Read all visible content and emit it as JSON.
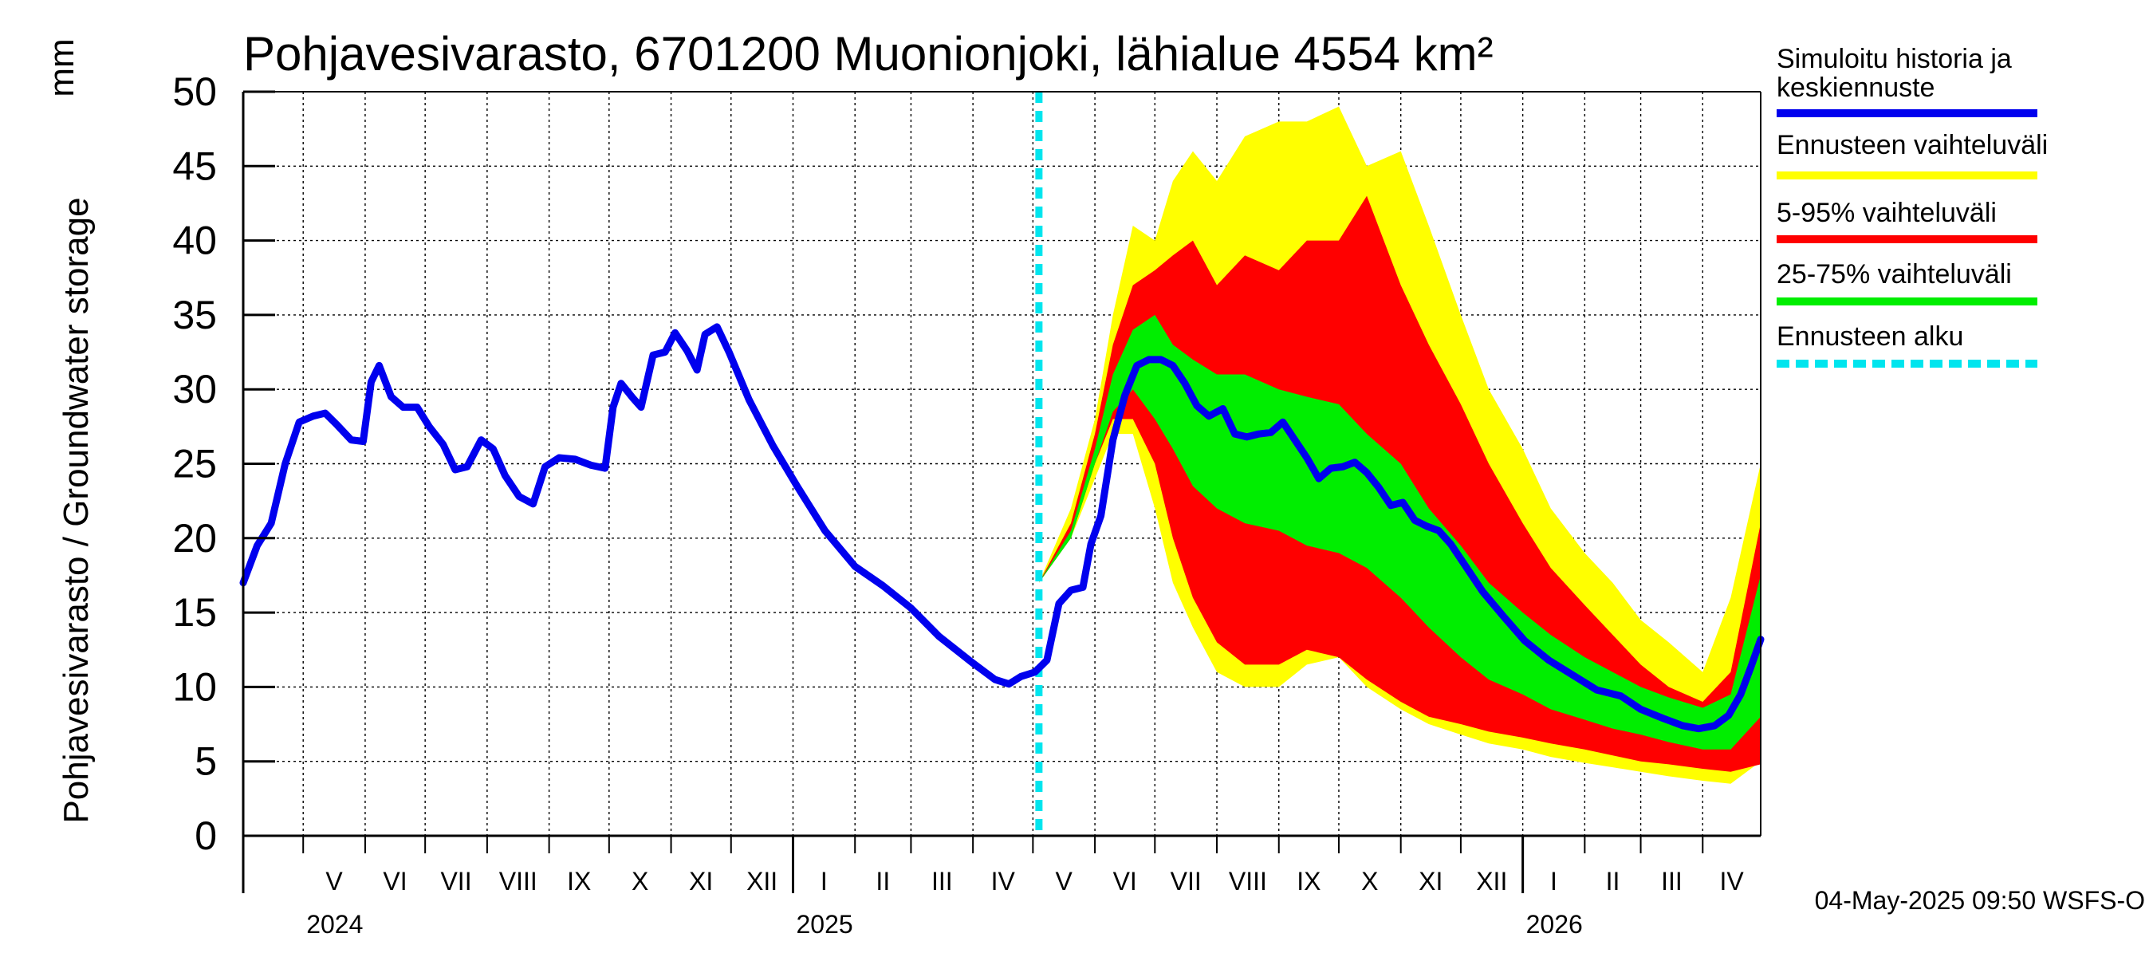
{
  "chart_data": {
    "type": "area",
    "title": "Pohjavesivarasto, 6701200 Muonionjoki, lähialue 4554 km²",
    "ylabel": "Pohjavesivarasto / Groundwater storage",
    "yunit": "mm",
    "ylim": [
      0,
      50
    ],
    "yticks": [
      0,
      5,
      10,
      15,
      20,
      25,
      30,
      35,
      40,
      45,
      50
    ],
    "xlim": [
      "2024-04-01",
      "2026-04-30"
    ],
    "grid": true,
    "legend_position": "right",
    "forecast_start": "2025-05-04",
    "months": [
      {
        "label": "V",
        "start": "2024-05-01"
      },
      {
        "label": "VI",
        "start": "2024-06-01"
      },
      {
        "label": "VII",
        "start": "2024-07-01"
      },
      {
        "label": "VIII",
        "start": "2024-08-01"
      },
      {
        "label": "IX",
        "start": "2024-09-01"
      },
      {
        "label": "X",
        "start": "2024-10-01"
      },
      {
        "label": "XI",
        "start": "2024-11-01"
      },
      {
        "label": "XII",
        "start": "2024-12-01"
      },
      {
        "label": "I",
        "start": "2025-01-01"
      },
      {
        "label": "II",
        "start": "2025-02-01"
      },
      {
        "label": "III",
        "start": "2025-03-01"
      },
      {
        "label": "IV",
        "start": "2025-04-01"
      },
      {
        "label": "V",
        "start": "2025-05-01"
      },
      {
        "label": "VI",
        "start": "2025-06-01"
      },
      {
        "label": "VII",
        "start": "2025-07-01"
      },
      {
        "label": "VIII",
        "start": "2025-08-01"
      },
      {
        "label": "IX",
        "start": "2025-09-01"
      },
      {
        "label": "X",
        "start": "2025-10-01"
      },
      {
        "label": "XI",
        "start": "2025-11-01"
      },
      {
        "label": "XII",
        "start": "2025-12-01"
      },
      {
        "label": "I",
        "start": "2026-01-01"
      },
      {
        "label": "II",
        "start": "2026-02-01"
      },
      {
        "label": "III",
        "start": "2026-03-01"
      },
      {
        "label": "IV",
        "start": "2026-04-01"
      }
    ],
    "years": [
      {
        "label": "2024",
        "start": "2024-05-01"
      },
      {
        "label": "2025",
        "start": "2025-01-01"
      },
      {
        "label": "2026",
        "start": "2026-01-01"
      }
    ],
    "series": [
      {
        "name": "Simuloitu historia ja keskiennuste",
        "kind": "line",
        "color": "#0000ee",
        "points": [
          [
            "2024-04-01",
            17
          ],
          [
            "2024-04-08",
            19.5
          ],
          [
            "2024-04-15",
            21
          ],
          [
            "2024-04-22",
            25
          ],
          [
            "2024-04-29",
            27.8
          ],
          [
            "2024-05-06",
            28.2
          ],
          [
            "2024-05-12",
            28.4
          ],
          [
            "2024-05-18",
            27.6
          ],
          [
            "2024-05-25",
            26.6
          ],
          [
            "2024-05-31",
            26.5
          ],
          [
            "2024-06-04",
            30.5
          ],
          [
            "2024-06-08",
            31.6
          ],
          [
            "2024-06-14",
            29.5
          ],
          [
            "2024-06-20",
            28.8
          ],
          [
            "2024-06-27",
            28.8
          ],
          [
            "2024-07-03",
            27.5
          ],
          [
            "2024-07-10",
            26.3
          ],
          [
            "2024-07-16",
            24.6
          ],
          [
            "2024-07-22",
            24.8
          ],
          [
            "2024-07-29",
            26.6
          ],
          [
            "2024-08-04",
            26
          ],
          [
            "2024-08-10",
            24.2
          ],
          [
            "2024-08-17",
            22.8
          ],
          [
            "2024-08-24",
            22.3
          ],
          [
            "2024-08-30",
            24.8
          ],
          [
            "2024-09-06",
            25.4
          ],
          [
            "2024-09-14",
            25.3
          ],
          [
            "2024-09-22",
            24.9
          ],
          [
            "2024-09-29",
            24.7
          ],
          [
            "2024-10-03",
            28.8
          ],
          [
            "2024-10-07",
            30.4
          ],
          [
            "2024-10-13",
            29.4
          ],
          [
            "2024-10-17",
            28.8
          ],
          [
            "2024-10-23",
            32.3
          ],
          [
            "2024-10-29",
            32.5
          ],
          [
            "2024-11-03",
            33.8
          ],
          [
            "2024-11-09",
            32.6
          ],
          [
            "2024-11-14",
            31.3
          ],
          [
            "2024-11-18",
            33.7
          ],
          [
            "2024-11-24",
            34.2
          ],
          [
            "2024-11-30",
            32.5
          ],
          [
            "2024-12-10",
            29.3
          ],
          [
            "2024-12-22",
            26.2
          ],
          [
            "2025-01-03",
            23.5
          ],
          [
            "2025-01-17",
            20.5
          ],
          [
            "2025-02-01",
            18.1
          ],
          [
            "2025-02-15",
            16.8
          ],
          [
            "2025-03-01",
            15.3
          ],
          [
            "2025-03-15",
            13.4
          ],
          [
            "2025-04-01",
            11.6
          ],
          [
            "2025-04-12",
            10.5
          ],
          [
            "2025-04-19",
            10.2
          ],
          [
            "2025-04-25",
            10.7
          ],
          [
            "2025-05-02",
            11
          ],
          [
            "2025-05-08",
            11.8
          ],
          [
            "2025-05-14",
            15.6
          ],
          [
            "2025-05-20",
            16.5
          ],
          [
            "2025-05-26",
            16.7
          ],
          [
            "2025-05-30",
            19.6
          ],
          [
            "2025-06-04",
            21.5
          ],
          [
            "2025-06-10",
            26.6
          ],
          [
            "2025-06-16",
            29.6
          ],
          [
            "2025-06-22",
            31.6
          ],
          [
            "2025-06-28",
            32
          ],
          [
            "2025-07-04",
            32
          ],
          [
            "2025-07-10",
            31.6
          ],
          [
            "2025-07-16",
            30.4
          ],
          [
            "2025-07-22",
            28.9
          ],
          [
            "2025-07-28",
            28.2
          ],
          [
            "2025-08-04",
            28.7
          ],
          [
            "2025-08-10",
            27
          ],
          [
            "2025-08-16",
            26.8
          ],
          [
            "2025-08-22",
            27
          ],
          [
            "2025-08-28",
            27.1
          ],
          [
            "2025-09-03",
            27.8
          ],
          [
            "2025-09-09",
            26.6
          ],
          [
            "2025-09-15",
            25.4
          ],
          [
            "2025-09-21",
            24
          ],
          [
            "2025-09-27",
            24.7
          ],
          [
            "2025-10-03",
            24.8
          ],
          [
            "2025-10-09",
            25.1
          ],
          [
            "2025-10-15",
            24.4
          ],
          [
            "2025-10-21",
            23.4
          ],
          [
            "2025-10-27",
            22.2
          ],
          [
            "2025-11-02",
            22.4
          ],
          [
            "2025-11-08",
            21.2
          ],
          [
            "2025-11-14",
            20.8
          ],
          [
            "2025-11-20",
            20.5
          ],
          [
            "2025-11-26",
            19.6
          ],
          [
            "2025-12-03",
            18.2
          ],
          [
            "2025-12-12",
            16.4
          ],
          [
            "2025-12-22",
            14.8
          ],
          [
            "2026-01-02",
            13.1
          ],
          [
            "2026-01-14",
            11.8
          ],
          [
            "2026-01-26",
            10.8
          ],
          [
            "2026-02-07",
            9.8
          ],
          [
            "2026-02-19",
            9.4
          ],
          [
            "2026-03-01",
            8.5
          ],
          [
            "2026-03-12",
            7.9
          ],
          [
            "2026-03-22",
            7.4
          ],
          [
            "2026-03-30",
            7.2
          ],
          [
            "2026-04-07",
            7.4
          ],
          [
            "2026-04-14",
            8.1
          ],
          [
            "2026-04-20",
            9.5
          ],
          [
            "2026-04-25",
            11.3
          ],
          [
            "2026-04-30",
            13.2
          ]
        ]
      },
      {
        "name": "Ennusteen vaihteluväli",
        "kind": "band",
        "color": "#ffff00",
        "x": [
          "2025-05-04",
          "2025-05-20",
          "2025-06-01",
          "2025-06-10",
          "2025-06-20",
          "2025-07-01",
          "2025-07-10",
          "2025-07-20",
          "2025-08-01",
          "2025-08-15",
          "2025-09-01",
          "2025-09-15",
          "2025-10-01",
          "2025-10-15",
          "2025-11-01",
          "2025-11-15",
          "2025-12-01",
          "2025-12-15",
          "2026-01-01",
          "2026-01-15",
          "2026-02-01",
          "2026-02-15",
          "2026-03-01",
          "2026-03-15",
          "2026-04-01",
          "2026-04-15",
          "2026-04-30"
        ],
        "upper": [
          17,
          22,
          28,
          35,
          41,
          40,
          44,
          46,
          44,
          47,
          48,
          48,
          49,
          45,
          46,
          41,
          35,
          30,
          26,
          22,
          19,
          17,
          14.5,
          13,
          11,
          16,
          25
        ],
        "lower": [
          17,
          20,
          24,
          27,
          27,
          22,
          17,
          14,
          11,
          10,
          10,
          11.5,
          12,
          10,
          8.5,
          7.5,
          6.8,
          6.2,
          5.8,
          5.3,
          4.9,
          4.6,
          4.3,
          4.0,
          3.7,
          3.5,
          5
        ]
      },
      {
        "name": "5-95% vaihteluväli",
        "kind": "band",
        "color": "#ff0000",
        "x": [
          "2025-05-04",
          "2025-05-20",
          "2025-06-01",
          "2025-06-10",
          "2025-06-20",
          "2025-07-01",
          "2025-07-10",
          "2025-07-20",
          "2025-08-01",
          "2025-08-15",
          "2025-09-01",
          "2025-09-15",
          "2025-10-01",
          "2025-10-15",
          "2025-11-01",
          "2025-11-15",
          "2025-12-01",
          "2025-12-15",
          "2026-01-01",
          "2026-01-15",
          "2026-02-01",
          "2026-02-15",
          "2026-03-01",
          "2026-03-15",
          "2026-04-01",
          "2026-04-15",
          "2026-04-30"
        ],
        "upper": [
          17,
          21,
          27,
          33,
          37,
          38,
          39,
          40,
          37,
          39,
          38,
          40,
          40,
          43,
          37,
          33,
          29,
          25,
          21,
          18,
          15.5,
          13.5,
          11.5,
          10,
          9,
          11,
          21
        ],
        "lower": [
          17,
          20,
          25,
          28,
          28,
          25,
          20,
          16,
          13,
          11.5,
          11.5,
          12.5,
          12,
          10.5,
          9,
          8,
          7.5,
          7,
          6.6,
          6.2,
          5.8,
          5.4,
          5,
          4.8,
          4.5,
          4.3,
          4.8
        ]
      },
      {
        "name": "25-75% vaihteluväli",
        "kind": "band",
        "color": "#00ee00",
        "x": [
          "2025-05-04",
          "2025-05-20",
          "2025-06-01",
          "2025-06-10",
          "2025-06-20",
          "2025-07-01",
          "2025-07-10",
          "2025-07-20",
          "2025-08-01",
          "2025-08-15",
          "2025-09-01",
          "2025-09-15",
          "2025-10-01",
          "2025-10-15",
          "2025-11-01",
          "2025-11-15",
          "2025-12-01",
          "2025-12-15",
          "2026-01-01",
          "2026-01-15",
          "2026-02-01",
          "2026-02-15",
          "2026-03-01",
          "2026-03-15",
          "2026-04-01",
          "2026-04-15",
          "2026-04-30"
        ],
        "upper": [
          17,
          20.5,
          26,
          31,
          34,
          35,
          33,
          32,
          31,
          31,
          30,
          29.5,
          29,
          27,
          25,
          22,
          19.5,
          17,
          15,
          13.5,
          12,
          11,
          10,
          9.3,
          8.6,
          9.5,
          17.5
        ],
        "lower": [
          17,
          20,
          25,
          28.5,
          30,
          28,
          26,
          23.5,
          22,
          21,
          20.5,
          19.5,
          19,
          18,
          16,
          14,
          12,
          10.5,
          9.5,
          8.5,
          7.8,
          7.2,
          6.8,
          6.3,
          5.8,
          5.8,
          8
        ]
      },
      {
        "name": "Ennusteen alku",
        "kind": "marker",
        "color": "#00e5ee",
        "x": "2025-05-04"
      }
    ]
  },
  "legend": [
    {
      "label": "Simuloitu historia ja\nkeskiennuste",
      "color": "#0000ee",
      "style": "solid"
    },
    {
      "label": "Ennusteen vaihteluväli",
      "color": "#ffff00",
      "style": "solid"
    },
    {
      "label": "5-95% vaihteluväli",
      "color": "#ff0000",
      "style": "solid"
    },
    {
      "label": "25-75% vaihteluväli",
      "color": "#00ee00",
      "style": "solid"
    },
    {
      "label": "Ennusteen alku",
      "color": "#00e5ee",
      "style": "dashed"
    }
  ],
  "footer": "04-May-2025 09:50 WSFS-O"
}
